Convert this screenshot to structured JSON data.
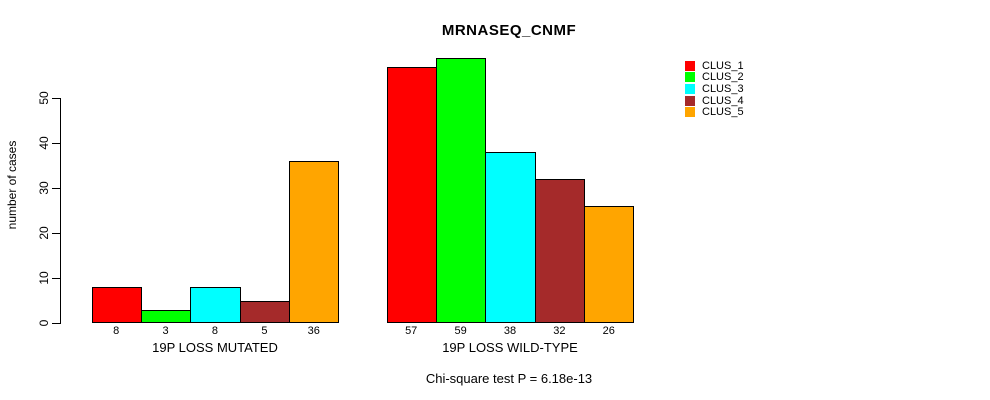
{
  "chart_data": {
    "type": "bar",
    "title": "MRNASEQ_CNMF",
    "subtitle": "Chi-square test P = 6.18e-13",
    "ylabel": "number of cases",
    "xlabel": "",
    "ylim": [
      0,
      50
    ],
    "y_ticks": [
      0,
      10,
      20,
      30,
      40,
      50
    ],
    "grid": false,
    "legend_position": "right",
    "clusters": [
      "CLUS_1",
      "CLUS_2",
      "CLUS_3",
      "CLUS_4",
      "CLUS_5"
    ],
    "colors": [
      "#FF0000",
      "#00FF00",
      "#00FFFF",
      "#A52A2A",
      "#FFA500"
    ],
    "groups": [
      {
        "label": "19P LOSS MUTATED",
        "values": [
          8,
          3,
          8,
          5,
          36
        ]
      },
      {
        "label": "19P LOSS WILD-TYPE",
        "values": [
          57,
          59,
          38,
          32,
          26
        ]
      }
    ]
  }
}
